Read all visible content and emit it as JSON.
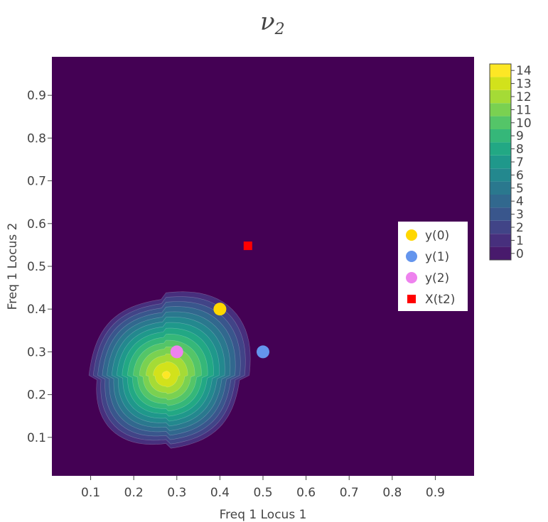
{
  "chart_data": {
    "type": "contour",
    "title": "ν",
    "title_subscript": "2",
    "xlabel": "Freq 1 Locus 1",
    "ylabel": "Freq 1 Locus 2",
    "xlim": [
      0.01,
      0.99
    ],
    "ylim": [
      0.01,
      0.99
    ],
    "x_ticks": [
      "0.1",
      "0.2",
      "0.3",
      "0.4",
      "0.5",
      "0.6",
      "0.7",
      "0.8",
      "0.9"
    ],
    "y_ticks": [
      "0.1",
      "0.2",
      "0.3",
      "0.4",
      "0.5",
      "0.6",
      "0.7",
      "0.8",
      "0.9"
    ],
    "contour": {
      "peak": [
        0.275,
        0.245
      ],
      "peak_value": 14.3,
      "colorscale": "Viridis",
      "levels": [
        0,
        1,
        2,
        3,
        4,
        5,
        6,
        7,
        8,
        9,
        10,
        11,
        12,
        13,
        14
      ],
      "colorbar_ticks": [
        "0",
        "1",
        "2",
        "3",
        "4",
        "5",
        "6",
        "7",
        "8",
        "9",
        "10",
        "11",
        "12",
        "13",
        "14"
      ]
    },
    "series": [
      {
        "name": "y(0)",
        "color": "#FFD700",
        "marker": "circle",
        "x": [
          0.4
        ],
        "y": [
          0.4
        ]
      },
      {
        "name": "y(1)",
        "color": "#6495ED",
        "marker": "circle",
        "x": [
          0.5
        ],
        "y": [
          0.3
        ]
      },
      {
        "name": "y(2)",
        "color": "#EE82EE",
        "marker": "circle",
        "x": [
          0.3
        ],
        "y": [
          0.3
        ]
      },
      {
        "name": "X(t2)",
        "color": "#FF0000",
        "marker": "square",
        "x": [
          0.465
        ],
        "y": [
          0.548
        ]
      }
    ],
    "legend_placement": "right"
  }
}
